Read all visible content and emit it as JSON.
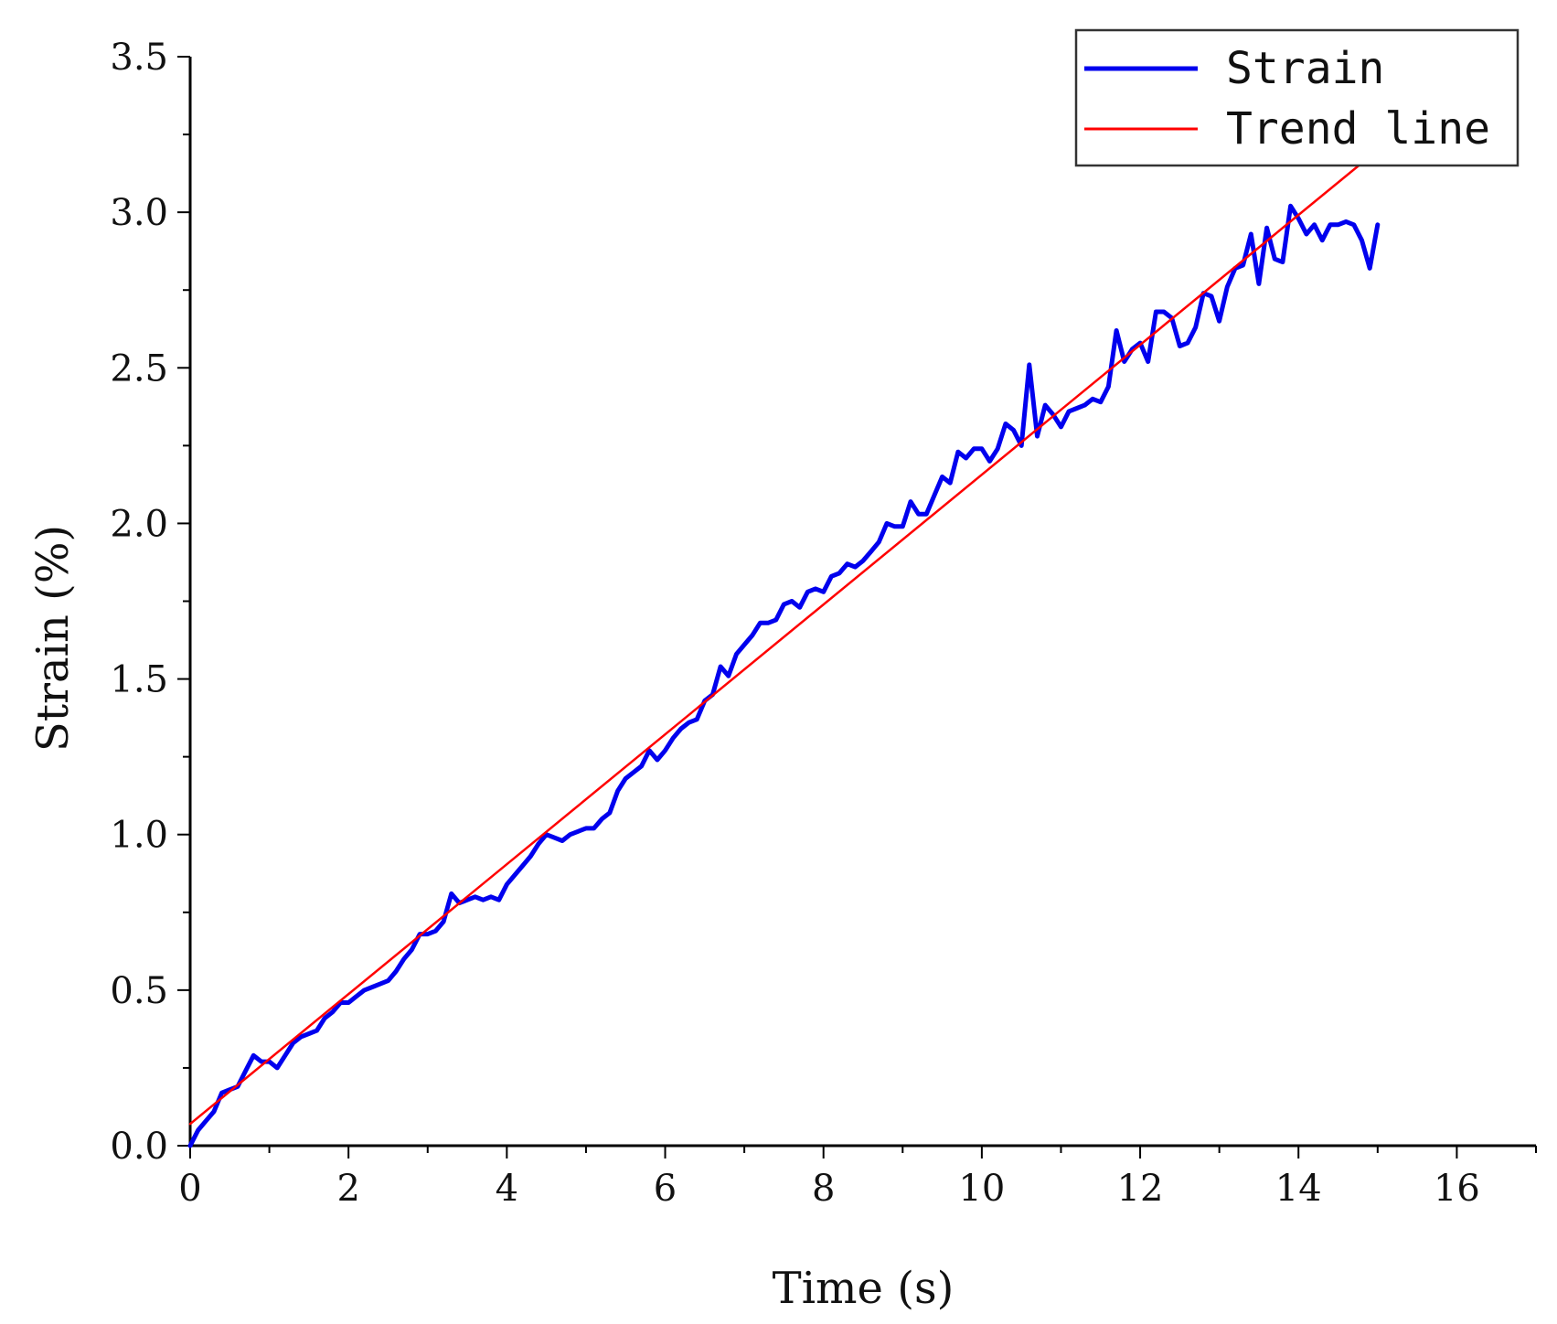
{
  "chart_data": {
    "type": "line",
    "title": "",
    "xlabel": "Time (s)",
    "ylabel": "Strain (%)",
    "xlim": [
      0,
      17
    ],
    "ylim": [
      0,
      3.5
    ],
    "x_ticks": [
      "0",
      "2",
      "4",
      "6",
      "8",
      "10",
      "12",
      "14",
      "16"
    ],
    "x_tick_values": [
      0,
      2,
      4,
      6,
      8,
      10,
      12,
      14,
      16
    ],
    "y_ticks": [
      "0.0",
      "0.5",
      "1.0",
      "1.5",
      "2.0",
      "2.5",
      "3.0",
      "3.5"
    ],
    "y_tick_values": [
      0,
      0.5,
      1.0,
      1.5,
      2.0,
      2.5,
      3.0,
      3.5
    ],
    "grid": false,
    "legend_position": "top-right",
    "series": [
      {
        "name": "Strain",
        "color": "#0000ee",
        "x": [
          0,
          0.1,
          0.2,
          0.3,
          0.4,
          0.5,
          0.6,
          0.7,
          0.8,
          0.9,
          1.0,
          1.1,
          1.2,
          1.3,
          1.4,
          1.5,
          1.6,
          1.7,
          1.8,
          1.9,
          2.0,
          2.1,
          2.2,
          2.3,
          2.4,
          2.5,
          2.6,
          2.7,
          2.8,
          2.9,
          3.0,
          3.1,
          3.2,
          3.3,
          3.4,
          3.5,
          3.6,
          3.7,
          3.8,
          3.9,
          4.0,
          4.1,
          4.2,
          4.3,
          4.4,
          4.5,
          4.6,
          4.7,
          4.8,
          4.9,
          5.0,
          5.1,
          5.2,
          5.3,
          5.4,
          5.5,
          5.6,
          5.7,
          5.8,
          5.9,
          6.0,
          6.1,
          6.2,
          6.3,
          6.4,
          6.5,
          6.6,
          6.7,
          6.8,
          6.9,
          7.0,
          7.1,
          7.2,
          7.3,
          7.4,
          7.5,
          7.6,
          7.7,
          7.8,
          7.9,
          8.0,
          8.1,
          8.2,
          8.3,
          8.4,
          8.5,
          8.6,
          8.7,
          8.8,
          8.9,
          9.0,
          9.1,
          9.2,
          9.3,
          9.4,
          9.5,
          9.6,
          9.7,
          9.8,
          9.9,
          10.0,
          10.1,
          10.2,
          10.3,
          10.4,
          10.5,
          10.6,
          10.7,
          10.8,
          10.9,
          11.0,
          11.1,
          11.2,
          11.3,
          11.4,
          11.5,
          11.6,
          11.7,
          11.8,
          11.9,
          12.0,
          12.1,
          12.2,
          12.3,
          12.4,
          12.5,
          12.6,
          12.7,
          12.8,
          12.9,
          13.0,
          13.1,
          13.2,
          13.3,
          13.4,
          13.5,
          13.6,
          13.7,
          13.8,
          13.9,
          14.0,
          14.1,
          14.2,
          14.3,
          14.4,
          14.5,
          14.6,
          14.7,
          14.8,
          14.9,
          15.0
        ],
        "values": [
          0.0,
          0.05,
          0.08,
          0.11,
          0.17,
          0.18,
          0.19,
          0.24,
          0.29,
          0.27,
          0.27,
          0.25,
          0.29,
          0.33,
          0.35,
          0.36,
          0.37,
          0.41,
          0.43,
          0.46,
          0.46,
          0.48,
          0.5,
          0.51,
          0.52,
          0.53,
          0.56,
          0.6,
          0.63,
          0.68,
          0.68,
          0.69,
          0.72,
          0.81,
          0.78,
          0.79,
          0.8,
          0.79,
          0.8,
          0.79,
          0.84,
          0.87,
          0.9,
          0.93,
          0.97,
          1.0,
          0.99,
          0.98,
          1.0,
          1.01,
          1.02,
          1.02,
          1.05,
          1.07,
          1.14,
          1.18,
          1.2,
          1.22,
          1.27,
          1.24,
          1.27,
          1.31,
          1.34,
          1.36,
          1.37,
          1.43,
          1.45,
          1.54,
          1.51,
          1.58,
          1.61,
          1.64,
          1.68,
          1.68,
          1.69,
          1.74,
          1.75,
          1.73,
          1.78,
          1.79,
          1.78,
          1.83,
          1.84,
          1.87,
          1.86,
          1.88,
          1.91,
          1.94,
          2.0,
          1.99,
          1.99,
          2.07,
          2.03,
          2.03,
          2.09,
          2.15,
          2.13,
          2.23,
          2.21,
          2.24,
          2.24,
          2.2,
          2.24,
          2.32,
          2.3,
          2.25,
          2.51,
          2.28,
          2.38,
          2.35,
          2.31,
          2.36,
          2.37,
          2.38,
          2.4,
          2.39,
          2.44,
          2.62,
          2.52,
          2.56,
          2.58,
          2.52,
          2.68,
          2.68,
          2.66,
          2.57,
          2.58,
          2.63,
          2.74,
          2.73,
          2.65,
          2.76,
          2.82,
          2.83,
          2.93,
          2.77,
          2.95,
          2.85,
          2.84,
          3.02,
          2.98,
          2.93,
          2.96,
          2.91,
          2.96,
          2.96,
          2.97,
          2.96,
          2.91,
          2.82,
          2.96
        ]
      },
      {
        "name": "Trend line",
        "color": "#ff0000",
        "x": [
          0,
          15
        ],
        "values": [
          0.07,
          3.2
        ]
      }
    ]
  }
}
